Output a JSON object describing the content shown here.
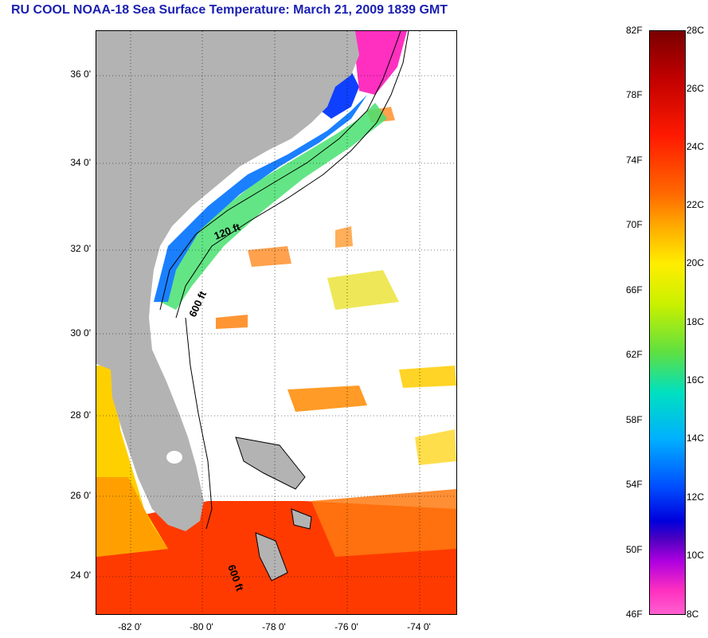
{
  "header": {
    "title": "RU COOL  NOAA-18  Sea Surface Temperature:  March 21, 2009 1839 GMT"
  },
  "map": {
    "lat_ticks": [
      "36 0'",
      "34 0'",
      "32 0'",
      "30 0'",
      "28 0'",
      "26 0'",
      "24 0'"
    ],
    "lon_ticks": [
      "-82 0'",
      "-80 0'",
      "-78 0'",
      "-76 0'",
      "-74 0'"
    ],
    "isobath_labels": [
      "120 ft",
      "600 ft",
      "600 ft"
    ],
    "colors": {
      "land": "#b3b3b3",
      "warm": "#ff3a00",
      "mid": "#ff9a00",
      "cool": "#2a8cff",
      "cold": "#ff30c0"
    }
  },
  "colorbar": {
    "fahrenheit_labels": [
      "82F",
      "78F",
      "74F",
      "70F",
      "66F",
      "62F",
      "58F",
      "54F",
      "50F",
      "46F"
    ],
    "celsius_labels": [
      "28C",
      "26C",
      "24C",
      "22C",
      "20C",
      "18C",
      "16C",
      "14C",
      "12C",
      "10C",
      "8C"
    ]
  }
}
